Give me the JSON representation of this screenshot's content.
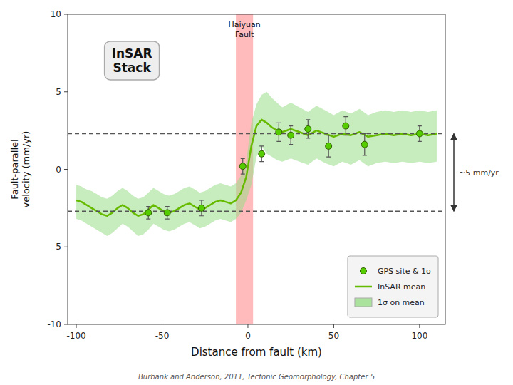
{
  "chart_data": {
    "type": "line",
    "xlabel": "Distance from fault (km)",
    "ylabel": "Fault-parallel\nvelocity (mm/yr)",
    "caption": "Burbank and Anderson, 2011, Tectonic Geomorphology, Chapter 5",
    "xlim": [
      -105,
      115
    ],
    "ylim": [
      -10,
      10
    ],
    "xticks": [
      -100,
      -50,
      0,
      50,
      100
    ],
    "yticks": [
      -10,
      -5,
      0,
      5,
      10
    ],
    "grid": false,
    "legend": "lower right",
    "fault_zone": {
      "x0": -7,
      "x1": 3,
      "label": "Haiyuan\nFault",
      "color": "#ffbbbb"
    },
    "reference_lines": {
      "values": [
        2.3,
        -2.7
      ],
      "label": "~5 mm/yr",
      "line_style": "dashed"
    },
    "annotations": [
      {
        "text": "InSAR\nStack"
      }
    ],
    "series": [
      {
        "name": "GPS site & 1σ",
        "type": "scatter",
        "marker": "circle",
        "color": "#55cc00",
        "x": [
          -3,
          8,
          18,
          25,
          35,
          47,
          57,
          68,
          100,
          -58,
          -47,
          -27
        ],
        "values": [
          0.2,
          1.0,
          2.4,
          2.2,
          2.6,
          1.5,
          2.8,
          1.6,
          2.3,
          -2.8,
          -2.8,
          -2.5
        ],
        "errors": [
          0.5,
          0.5,
          0.6,
          0.6,
          0.6,
          0.7,
          0.6,
          0.7,
          0.5,
          0.4,
          0.4,
          0.5
        ]
      },
      {
        "name": "InSAR mean",
        "type": "line",
        "color": "#66bb00",
        "x": [
          -100,
          -97,
          -94,
          -91,
          -88,
          -85,
          -82,
          -79,
          -76,
          -73,
          -70,
          -67,
          -64,
          -61,
          -58,
          -55,
          -52,
          -49,
          -46,
          -43,
          -40,
          -37,
          -34,
          -31,
          -28,
          -25,
          -22,
          -19,
          -16,
          -13,
          -10,
          -7,
          -4,
          -1,
          2,
          5,
          8,
          11,
          14,
          17,
          20,
          25,
          30,
          35,
          40,
          45,
          50,
          55,
          60,
          65,
          70,
          75,
          80,
          85,
          90,
          95,
          100,
          105,
          110
        ],
        "values": [
          -2.0,
          -2.1,
          -2.3,
          -2.5,
          -2.7,
          -2.9,
          -3.0,
          -2.8,
          -2.5,
          -2.3,
          -2.5,
          -2.8,
          -3.0,
          -2.9,
          -2.6,
          -2.3,
          -2.5,
          -2.7,
          -2.8,
          -2.7,
          -2.5,
          -2.3,
          -2.2,
          -2.4,
          -2.6,
          -2.5,
          -2.3,
          -2.1,
          -2.0,
          -2.1,
          -2.2,
          -2.0,
          -1.5,
          -0.5,
          1.5,
          2.8,
          3.2,
          3.0,
          2.7,
          2.5,
          2.4,
          2.6,
          2.4,
          2.2,
          2.5,
          2.3,
          2.1,
          2.3,
          2.2,
          2.4,
          2.1,
          2.2,
          2.3,
          2.2,
          2.3,
          2.2,
          2.3,
          2.2,
          2.3
        ]
      },
      {
        "name": "1σ on mean",
        "type": "band",
        "color": "#99dd88",
        "x": [
          -100,
          -97,
          -94,
          -91,
          -88,
          -85,
          -82,
          -79,
          -76,
          -73,
          -70,
          -67,
          -64,
          -61,
          -58,
          -55,
          -52,
          -49,
          -46,
          -43,
          -40,
          -37,
          -34,
          -31,
          -28,
          -25,
          -22,
          -19,
          -16,
          -13,
          -10,
          -7,
          -4,
          -1,
          2,
          5,
          8,
          11,
          14,
          17,
          20,
          25,
          30,
          35,
          40,
          45,
          50,
          55,
          60,
          65,
          70,
          75,
          80,
          85,
          90,
          95,
          100,
          105,
          110
        ],
        "upper": [
          -1.0,
          -1.1,
          -1.3,
          -1.4,
          -1.6,
          -1.8,
          -1.9,
          -1.7,
          -1.4,
          -1.2,
          -1.4,
          -1.7,
          -1.9,
          -1.8,
          -1.5,
          -1.2,
          -1.4,
          -1.6,
          -1.7,
          -1.6,
          -1.4,
          -1.2,
          -1.1,
          -1.3,
          -1.5,
          -1.4,
          -1.2,
          -1.0,
          -0.9,
          -1.0,
          -1.1,
          -0.9,
          -0.4,
          0.5,
          3.0,
          4.2,
          4.8,
          5.0,
          4.6,
          4.3,
          4.0,
          4.3,
          4.0,
          3.7,
          4.1,
          3.8,
          3.5,
          3.8,
          3.6,
          3.9,
          3.5,
          3.7,
          3.8,
          3.7,
          3.8,
          3.7,
          3.8,
          3.7,
          3.8
        ],
        "lower": [
          -3.2,
          -3.3,
          -3.5,
          -3.7,
          -3.9,
          -4.1,
          -4.3,
          -4.1,
          -3.8,
          -3.5,
          -3.7,
          -4.0,
          -4.3,
          -4.2,
          -3.9,
          -3.5,
          -3.7,
          -3.9,
          -4.0,
          -3.9,
          -3.7,
          -3.5,
          -3.4,
          -3.6,
          -3.8,
          -3.7,
          -3.5,
          -3.3,
          -3.2,
          -3.3,
          -3.4,
          -3.2,
          -2.8,
          -2.0,
          -1.0,
          0.8,
          1.5,
          1.0,
          0.8,
          0.6,
          0.5,
          0.7,
          0.5,
          0.3,
          0.7,
          0.4,
          0.2,
          0.5,
          0.3,
          0.6,
          0.2,
          0.4,
          0.5,
          0.4,
          0.5,
          0.4,
          0.5,
          0.4,
          0.5
        ]
      }
    ]
  }
}
